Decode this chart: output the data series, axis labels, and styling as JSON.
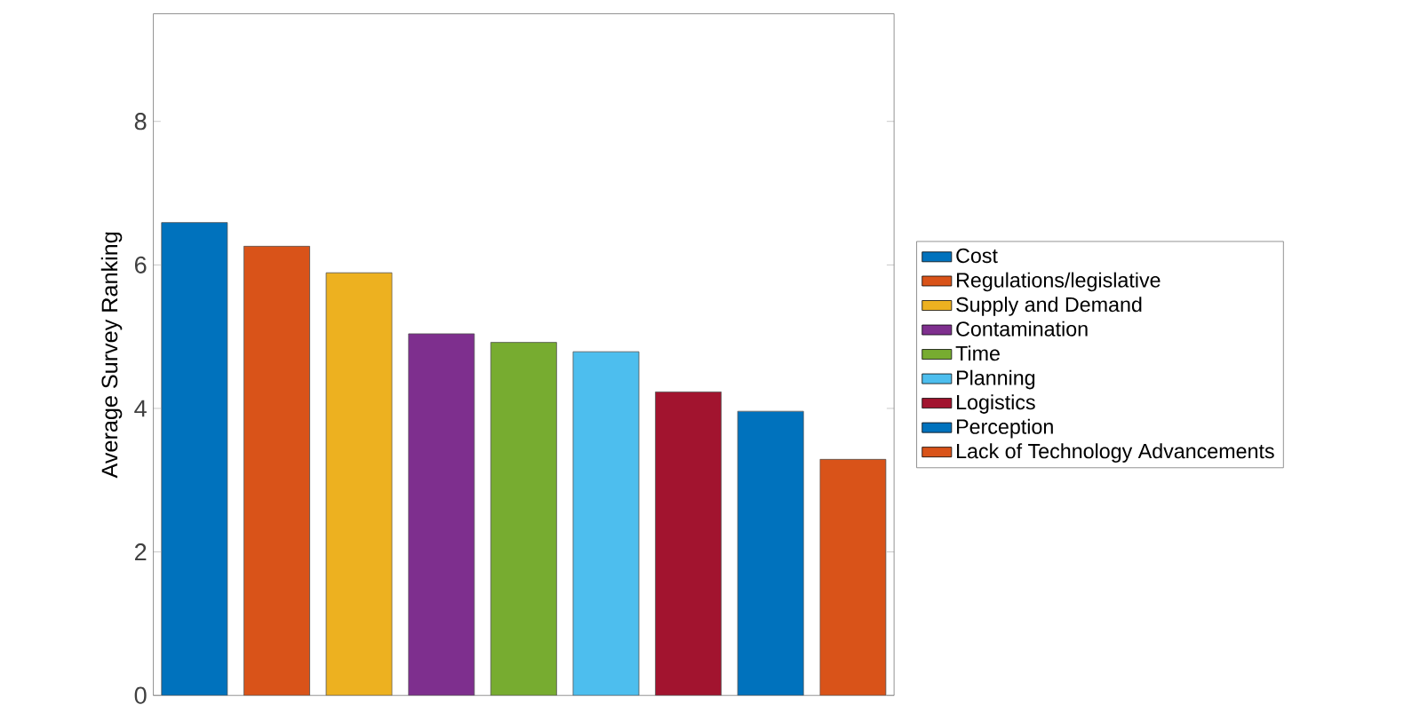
{
  "chart_data": {
    "type": "bar",
    "ylabel": "Average Survey Ranking",
    "categories": [
      null,
      null,
      null,
      null,
      null,
      null,
      null,
      null,
      null
    ],
    "series": [
      {
        "name": "Cost",
        "color": "#0072bd",
        "values": [
          6.59,
          null,
          null,
          null,
          null,
          null,
          null,
          null,
          null
        ]
      },
      {
        "name": "Regulations/legislative",
        "color": "#d95319",
        "values": [
          null,
          6.26,
          null,
          null,
          null,
          null,
          null,
          null,
          null
        ]
      },
      {
        "name": "Supply and Demand",
        "color": "#edb120",
        "values": [
          null,
          null,
          5.89,
          null,
          null,
          null,
          null,
          null,
          null
        ]
      },
      {
        "name": "Contamination",
        "color": "#7e2f8e",
        "values": [
          null,
          null,
          null,
          5.04,
          null,
          null,
          null,
          null,
          null
        ]
      },
      {
        "name": "Time",
        "color": "#77ac30",
        "values": [
          null,
          null,
          null,
          null,
          4.92,
          null,
          null,
          null,
          null
        ]
      },
      {
        "name": "Planning",
        "color": "#4dbeee",
        "values": [
          null,
          null,
          null,
          null,
          null,
          4.79,
          null,
          null,
          null
        ]
      },
      {
        "name": "Logistics",
        "color": "#a2142f",
        "values": [
          null,
          null,
          null,
          null,
          null,
          null,
          4.23,
          null,
          null
        ]
      },
      {
        "name": "Perception",
        "color": "#0072bd",
        "values": [
          null,
          null,
          null,
          null,
          null,
          null,
          null,
          3.96,
          null
        ]
      },
      {
        "name": "Lack of Technology Advancements",
        "color": "#d95319",
        "values": [
          null,
          null,
          null,
          null,
          null,
          null,
          null,
          null,
          3.29
        ]
      }
    ],
    "ylim": [
      0,
      9.5
    ],
    "yticks": [
      0,
      2,
      4,
      6,
      8
    ],
    "stacked": true,
    "grid": false,
    "legend": "right"
  }
}
